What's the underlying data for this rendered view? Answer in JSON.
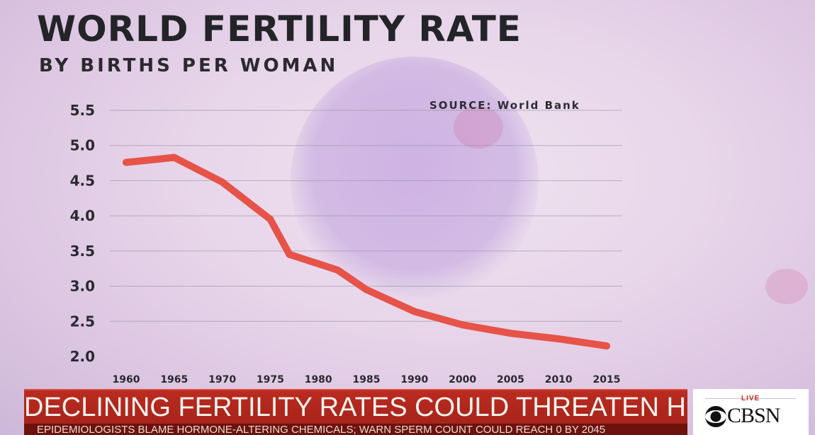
{
  "chart_data": {
    "type": "line",
    "title": "WORLD FERTILITY RATE",
    "subtitle": "BY BIRTHS PER WOMAN",
    "source": "SOURCE: World Bank",
    "xlabel": "",
    "ylabel": "",
    "x": [
      "1960",
      "1965",
      "1970",
      "1975",
      "1980",
      "1985",
      "1990",
      "2000",
      "2005",
      "2010",
      "2015"
    ],
    "y_ticks": [
      "5.5",
      "5.0",
      "4.5",
      "4.0",
      "3.5",
      "3.0",
      "2.5",
      "2.0"
    ],
    "ylim": [
      2.0,
      5.5
    ],
    "series": [
      {
        "name": "Fertility rate",
        "points": [
          {
            "x": 1960,
            "y": 4.76
          },
          {
            "x": 1965,
            "y": 4.83
          },
          {
            "x": 1970,
            "y": 4.48
          },
          {
            "x": 1975,
            "y": 3.95
          },
          {
            "x": 1977,
            "y": 3.45
          },
          {
            "x": 1982,
            "y": 3.23
          },
          {
            "x": 1985,
            "y": 2.95
          },
          {
            "x": 1990,
            "y": 2.64
          },
          {
            "x": 2000,
            "y": 2.45
          },
          {
            "x": 2005,
            "y": 2.33
          },
          {
            "x": 2010,
            "y": 2.25
          },
          {
            "x": 2015,
            "y": 2.15
          }
        ]
      }
    ],
    "grid": true,
    "colors": {
      "line": "#e65349",
      "grid": "#8c8a99"
    }
  },
  "ticker": {
    "headline": "DECLINING FERTILITY RATES COULD THREATEN HUMAN RACE",
    "crawl": "EPIDEMIOLOGISTS BLAME HORMONE-ALTERING CHEMICALS; WARN SPERM COUNT COULD REACH 0 BY 2045"
  },
  "network": {
    "live": "LIVE",
    "name": "CBSN"
  }
}
